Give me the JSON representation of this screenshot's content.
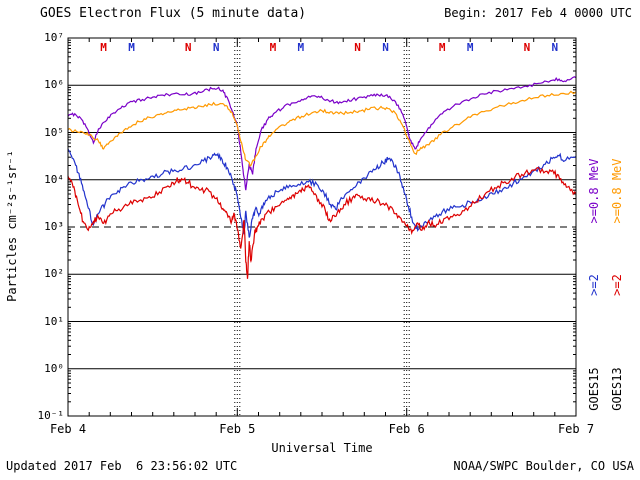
{
  "header": {
    "title": "GOES Electron Flux (5 minute data)",
    "begin_label": "Begin: 2017 Feb 4 0000 UTC"
  },
  "footer": {
    "updated": "Updated 2017 Feb  6 23:56:02 UTC",
    "source": "NOAA/SWPC Boulder, CO USA"
  },
  "chart_data": {
    "type": "line",
    "title": "GOES Electron Flux (5 minute data)",
    "xlabel": "Universal Time",
    "ylabel": "Particles cm⁻²s⁻¹sr⁻¹",
    "x_unit": "days since 2017 Feb 4 0000 UTC",
    "xlim": [
      0,
      3
    ],
    "x_ticks": [
      0,
      1,
      2,
      3
    ],
    "x_ticklabels": [
      "Feb 4",
      "Feb 5",
      "Feb 6",
      "Feb 7"
    ],
    "ylog": true,
    "ylim_exp": [
      -1,
      7
    ],
    "y_ticklabels": [
      "10⁻¹",
      "10⁰",
      "10¹",
      "10²",
      "10³",
      "10⁴",
      "10⁵",
      "10⁶",
      "10⁷"
    ],
    "threshold_exp": 3,
    "day_gridlines": [
      1,
      2
    ],
    "grid": "solid horizontal per decade, dashed at 10^3, dotted vertical at day boundaries",
    "legend_position": "right, rotated",
    "legend": {
      "goes15": {
        "sat_label": "GOES15",
        "sat_color": "#000000",
        "e08_label": ">=0.8 MeV",
        "e08_color": "#7a00c8",
        "e2_label": ">=2",
        "e2_color": "#2233cc"
      },
      "goes13": {
        "sat_label": "GOES13",
        "sat_color": "#000000",
        "e08_label": ">=0.8 MeV",
        "e08_color": "#ff9900",
        "e2_label": ">=2",
        "e2_color": "#dd0000"
      }
    },
    "markers": [
      {
        "letter": "M",
        "color": "#dd0000",
        "x": 0.21
      },
      {
        "letter": "M",
        "color": "#2233cc",
        "x": 0.375
      },
      {
        "letter": "N",
        "color": "#dd0000",
        "x": 0.71
      },
      {
        "letter": "N",
        "color": "#2233cc",
        "x": 0.875
      },
      {
        "letter": "M",
        "color": "#dd0000",
        "x": 1.21
      },
      {
        "letter": "M",
        "color": "#2233cc",
        "x": 1.375
      },
      {
        "letter": "N",
        "color": "#dd0000",
        "x": 1.71
      },
      {
        "letter": "N",
        "color": "#2233cc",
        "x": 1.875
      },
      {
        "letter": "M",
        "color": "#dd0000",
        "x": 2.21
      },
      {
        "letter": "M",
        "color": "#2233cc",
        "x": 2.375
      },
      {
        "letter": "N",
        "color": "#dd0000",
        "x": 2.71
      },
      {
        "letter": "N",
        "color": "#2233cc",
        "x": 2.875
      }
    ],
    "series": [
      {
        "name": "GOES15 >=0.8 MeV",
        "color": "#7a00c8",
        "noise": 0.035,
        "points": [
          [
            0.0,
            220000.0
          ],
          [
            0.04,
            250000.0
          ],
          [
            0.08,
            190000.0
          ],
          [
            0.12,
            110000.0
          ],
          [
            0.15,
            60000.0
          ],
          [
            0.18,
            120000.0
          ],
          [
            0.22,
            170000.0
          ],
          [
            0.27,
            260000.0
          ],
          [
            0.32,
            360000.0
          ],
          [
            0.38,
            450000.0
          ],
          [
            0.44,
            500000.0
          ],
          [
            0.5,
            560000.0
          ],
          [
            0.56,
            620000.0
          ],
          [
            0.62,
            660000.0
          ],
          [
            0.68,
            630000.0
          ],
          [
            0.74,
            680000.0
          ],
          [
            0.8,
            750000.0
          ],
          [
            0.85,
            850000.0
          ],
          [
            0.89,
            900000.0
          ],
          [
            0.92,
            700000.0
          ],
          [
            0.95,
            450000.0
          ],
          [
            0.98,
            220000.0
          ],
          [
            1.0,
            140000.0
          ],
          [
            1.02,
            40000.0
          ],
          [
            1.04,
            11000.0
          ],
          [
            1.05,
            6000.0
          ],
          [
            1.07,
            22000.0
          ],
          [
            1.09,
            13000.0
          ],
          [
            1.11,
            45000.0
          ],
          [
            1.14,
            110000.0
          ],
          [
            1.18,
            190000.0
          ],
          [
            1.22,
            260000.0
          ],
          [
            1.27,
            330000.0
          ],
          [
            1.32,
            420000.0
          ],
          [
            1.38,
            500000.0
          ],
          [
            1.43,
            560000.0
          ],
          [
            1.48,
            580000.0
          ],
          [
            1.53,
            500000.0
          ],
          [
            1.58,
            430000.0
          ],
          [
            1.63,
            460000.0
          ],
          [
            1.68,
            500000.0
          ],
          [
            1.74,
            550000.0
          ],
          [
            1.8,
            600000.0
          ],
          [
            1.85,
            650000.0
          ],
          [
            1.9,
            580000.0
          ],
          [
            1.95,
            380000.0
          ],
          [
            1.99,
            180000.0
          ],
          [
            2.02,
            70000.0
          ],
          [
            2.05,
            45000.0
          ],
          [
            2.08,
            70000.0
          ],
          [
            2.12,
            110000.0
          ],
          [
            2.17,
            190000.0
          ],
          [
            2.23,
            290000.0
          ],
          [
            2.3,
            400000.0
          ],
          [
            2.38,
            520000.0
          ],
          [
            2.46,
            650000.0
          ],
          [
            2.54,
            760000.0
          ],
          [
            2.62,
            860000.0
          ],
          [
            2.7,
            960000.0
          ],
          [
            2.78,
            1100000.0
          ],
          [
            2.85,
            1250000.0
          ],
          [
            2.9,
            1350000.0
          ],
          [
            2.94,
            1200000.0
          ],
          [
            3.0,
            1450000.0
          ]
        ]
      },
      {
        "name": "GOES13 >=0.8 MeV",
        "color": "#ff9900",
        "noise": 0.035,
        "points": [
          [
            0.0,
            115000.0
          ],
          [
            0.05,
            105000.0
          ],
          [
            0.1,
            95000.0
          ],
          [
            0.14,
            85000.0
          ],
          [
            0.18,
            65000.0
          ],
          [
            0.21,
            45000.0
          ],
          [
            0.25,
            65000.0
          ],
          [
            0.3,
            95000.0
          ],
          [
            0.36,
            130000.0
          ],
          [
            0.42,
            170000.0
          ],
          [
            0.48,
            210000.0
          ],
          [
            0.54,
            240000.0
          ],
          [
            0.6,
            270000.0
          ],
          [
            0.66,
            300000.0
          ],
          [
            0.72,
            330000.0
          ],
          [
            0.78,
            360000.0
          ],
          [
            0.84,
            390000.0
          ],
          [
            0.9,
            410000.0
          ],
          [
            0.94,
            360000.0
          ],
          [
            0.97,
            260000.0
          ],
          [
            1.0,
            140000.0
          ],
          [
            1.03,
            50000.0
          ],
          [
            1.05,
            26000.0
          ],
          [
            1.08,
            20000.0
          ],
          [
            1.11,
            32000.0
          ],
          [
            1.14,
            50000.0
          ],
          [
            1.18,
            75000.0
          ],
          [
            1.22,
            105000.0
          ],
          [
            1.27,
            145000.0
          ],
          [
            1.32,
            180000.0
          ],
          [
            1.38,
            220000.0
          ],
          [
            1.44,
            260000.0
          ],
          [
            1.5,
            290000.0
          ],
          [
            1.55,
            275000.0
          ],
          [
            1.6,
            250000.0
          ],
          [
            1.66,
            260000.0
          ],
          [
            1.72,
            285000.0
          ],
          [
            1.78,
            310000.0
          ],
          [
            1.84,
            330000.0
          ],
          [
            1.89,
            320000.0
          ],
          [
            1.94,
            240000.0
          ],
          [
            1.98,
            130000.0
          ],
          [
            2.02,
            60000.0
          ],
          [
            2.05,
            36000.0
          ],
          [
            2.09,
            46000.0
          ],
          [
            2.14,
            62000.0
          ],
          [
            2.2,
            90000.0
          ],
          [
            2.27,
            130000.0
          ],
          [
            2.35,
            190000.0
          ],
          [
            2.43,
            260000.0
          ],
          [
            2.51,
            320000.0
          ],
          [
            2.59,
            390000.0
          ],
          [
            2.67,
            460000.0
          ],
          [
            2.75,
            540000.0
          ],
          [
            2.83,
            610000.0
          ],
          [
            2.91,
            670000.0
          ],
          [
            3.0,
            720000.0
          ]
        ]
      },
      {
        "name": "GOES15 >=2 MeV",
        "color": "#2233cc",
        "noise": 0.06,
        "points": [
          [
            0.0,
            45000.0
          ],
          [
            0.03,
            28000.0
          ],
          [
            0.06,
            14000.0
          ],
          [
            0.09,
            6000.0
          ],
          [
            0.12,
            2500.0
          ],
          [
            0.15,
            1100.0
          ],
          [
            0.18,
            1900.0
          ],
          [
            0.22,
            3200.0
          ],
          [
            0.27,
            5000.0
          ],
          [
            0.32,
            6800.0
          ],
          [
            0.38,
            8500.0
          ],
          [
            0.44,
            10000.0
          ],
          [
            0.5,
            12000.0
          ],
          [
            0.56,
            13500.0
          ],
          [
            0.62,
            15000.0
          ],
          [
            0.68,
            17000.0
          ],
          [
            0.74,
            20000.0
          ],
          [
            0.8,
            25000.0
          ],
          [
            0.85,
            30000.0
          ],
          [
            0.88,
            33000.0
          ],
          [
            0.91,
            27000.0
          ],
          [
            0.94,
            18000.0
          ],
          [
            0.97,
            10000.0
          ],
          [
            1.0,
            4500.0
          ],
          [
            1.02,
            1600.0
          ],
          [
            1.04,
            700.0
          ],
          [
            1.05,
            2200.0
          ],
          [
            1.07,
            600.0
          ],
          [
            1.09,
            1500.0
          ],
          [
            1.11,
            2600.0
          ],
          [
            1.13,
            1900.0
          ],
          [
            1.16,
            3000.0
          ],
          [
            1.2,
            4600.0
          ],
          [
            1.25,
            5800.0
          ],
          [
            1.3,
            6800.0
          ],
          [
            1.36,
            8000.0
          ],
          [
            1.42,
            9000.0
          ],
          [
            1.47,
            8000.0
          ],
          [
            1.51,
            5500.0
          ],
          [
            1.55,
            3000.0
          ],
          [
            1.58,
            2400.0
          ],
          [
            1.62,
            4000.0
          ],
          [
            1.67,
            6200.0
          ],
          [
            1.72,
            9000.0
          ],
          [
            1.77,
            12500.0
          ],
          [
            1.82,
            17000.0
          ],
          [
            1.86,
            23000.0
          ],
          [
            1.89,
            27000.0
          ],
          [
            1.92,
            23000.0
          ],
          [
            1.95,
            14000.0
          ],
          [
            1.98,
            7000.0
          ],
          [
            2.01,
            2800.0
          ],
          [
            2.04,
            1200.0
          ],
          [
            2.07,
            900.0
          ],
          [
            2.11,
            1300.0
          ],
          [
            2.16,
            1700.0
          ],
          [
            2.21,
            2100.0
          ],
          [
            2.27,
            2500.0
          ],
          [
            2.33,
            2900.0
          ],
          [
            2.39,
            3400.0
          ],
          [
            2.45,
            4000.0
          ],
          [
            2.51,
            5000.0
          ],
          [
            2.57,
            6500.0
          ],
          [
            2.63,
            8500.0
          ],
          [
            2.69,
            11500.0
          ],
          [
            2.75,
            15500.0
          ],
          [
            2.81,
            21000.0
          ],
          [
            2.86,
            28000.0
          ],
          [
            2.9,
            32000.0
          ],
          [
            2.94,
            26000.0
          ],
          [
            3.0,
            31000.0
          ]
        ]
      },
      {
        "name": "GOES13 >=2 MeV",
        "color": "#dd0000",
        "noise": 0.07,
        "points": [
          [
            0.0,
            12000.0
          ],
          [
            0.03,
            7000.0
          ],
          [
            0.06,
            3000.0
          ],
          [
            0.09,
            1300.0
          ],
          [
            0.12,
            850.0
          ],
          [
            0.15,
            1300.0
          ],
          [
            0.18,
            1600.0
          ],
          [
            0.21,
            1200.0
          ],
          [
            0.25,
            1900.0
          ],
          [
            0.3,
            2400.0
          ],
          [
            0.36,
            3000.0
          ],
          [
            0.42,
            3600.0
          ],
          [
            0.48,
            4400.0
          ],
          [
            0.54,
            5500.0
          ],
          [
            0.6,
            7000.0
          ],
          [
            0.64,
            9500.0
          ],
          [
            0.67,
            10500.0
          ],
          [
            0.71,
            8500.0
          ],
          [
            0.76,
            7000.0
          ],
          [
            0.81,
            6000.0
          ],
          [
            0.86,
            4600.0
          ],
          [
            0.9,
            3200.0
          ],
          [
            0.93,
            2100.0
          ],
          [
            0.96,
            1300.0
          ],
          [
            0.98,
            2000.0
          ],
          [
            1.0,
            900.0
          ],
          [
            1.02,
            350.0
          ],
          [
            1.04,
            1400.0
          ],
          [
            1.05,
            180.0
          ],
          [
            1.06,
            80.0
          ],
          [
            1.07,
            500.0
          ],
          [
            1.08,
            190.0
          ],
          [
            1.1,
            650.0
          ],
          [
            1.12,
            1050.0
          ],
          [
            1.15,
            1500.0
          ],
          [
            1.19,
            2100.0
          ],
          [
            1.24,
            2800.0
          ],
          [
            1.29,
            3700.0
          ],
          [
            1.33,
            4800.0
          ],
          [
            1.37,
            6000.0
          ],
          [
            1.41,
            7000.0
          ],
          [
            1.44,
            5800.0
          ],
          [
            1.48,
            3800.0
          ],
          [
            1.52,
            2200.0
          ],
          [
            1.55,
            1300.0
          ],
          [
            1.59,
            2000.0
          ],
          [
            1.63,
            3000.0
          ],
          [
            1.68,
            4200.0
          ],
          [
            1.72,
            4600.0
          ],
          [
            1.77,
            4100.0
          ],
          [
            1.82,
            3500.0
          ],
          [
            1.87,
            2900.0
          ],
          [
            1.92,
            2300.0
          ],
          [
            1.96,
            1600.0
          ],
          [
            2.0,
            1050.0
          ],
          [
            2.03,
            750.0
          ],
          [
            2.06,
            1200.0
          ],
          [
            2.09,
            850.0
          ],
          [
            2.13,
            1350.0
          ],
          [
            2.17,
            1000.0
          ],
          [
            2.22,
            1500.0
          ],
          [
            2.28,
            1850.0
          ],
          [
            2.34,
            2200.0
          ],
          [
            2.4,
            3200.0
          ],
          [
            2.46,
            4800.0
          ],
          [
            2.52,
            6800.0
          ],
          [
            2.58,
            9000.0
          ],
          [
            2.64,
            11500.0
          ],
          [
            2.7,
            14000.0
          ],
          [
            2.76,
            16000.0
          ],
          [
            2.82,
            15000.0
          ],
          [
            2.87,
            13500.0
          ],
          [
            2.91,
            10500.0
          ],
          [
            2.95,
            7000.0
          ],
          [
            3.0,
            5000.0
          ]
        ]
      }
    ]
  }
}
